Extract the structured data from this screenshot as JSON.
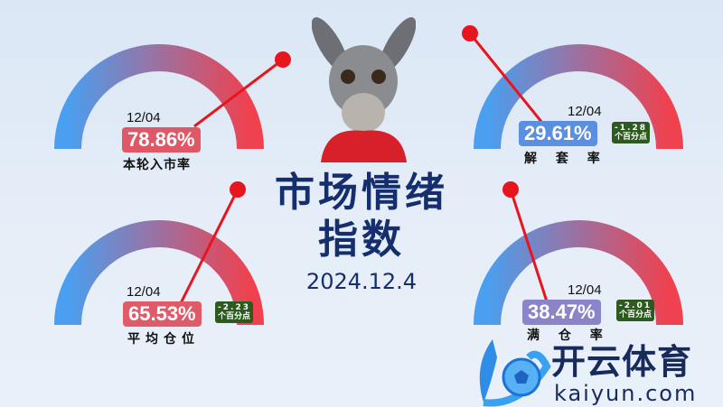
{
  "title_line1": "市场情绪",
  "title_line2": "指数",
  "date": "2024.12.4",
  "colors": {
    "gauge_start": "#4a9ff0",
    "gauge_end": "#f0414e",
    "pointer": "#e8141e",
    "title": "#142e6e",
    "change_badge": "#2d5a1e"
  },
  "gauges": [
    {
      "label": "本轮入市率",
      "date": "12/04",
      "value": "78.86%",
      "percent": 78.86,
      "value_color": "#e05866"
    },
    {
      "label": "解 套 率",
      "date": "12/04",
      "value": "29.61%",
      "percent": 29.61,
      "value_color": "#5b8fe0",
      "change": "-1.28",
      "change_unit": "个百分点"
    },
    {
      "label": "平均仓位",
      "date": "12/04",
      "value": "65.53%",
      "percent": 65.53,
      "value_color": "#df5b6a",
      "change": "-2.23",
      "change_unit": "个百分点"
    },
    {
      "label": "满 仓 率",
      "date": "12/04",
      "value": "38.47%",
      "percent": 38.47,
      "value_color": "#8b84c8",
      "change": "-2.01",
      "change_unit": "个百分点"
    }
  ],
  "logo": {
    "cn": "开云体育",
    "en": "kaiyun.com"
  },
  "mascot": "donkey-mascot"
}
